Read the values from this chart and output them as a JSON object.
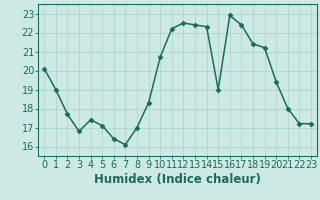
{
  "x": [
    0,
    1,
    2,
    3,
    4,
    5,
    6,
    7,
    8,
    9,
    10,
    11,
    12,
    13,
    14,
    15,
    16,
    17,
    18,
    19,
    20,
    21,
    22,
    23
  ],
  "y": [
    20.1,
    19.0,
    17.7,
    16.8,
    17.4,
    17.1,
    16.4,
    16.1,
    17.0,
    18.3,
    20.7,
    22.2,
    22.5,
    22.4,
    22.3,
    19.0,
    22.9,
    22.4,
    21.4,
    21.2,
    19.4,
    18.0,
    17.2,
    17.2
  ],
  "line_color": "#1a6b5a",
  "marker": "D",
  "marker_size": 2.5,
  "bg_color": "#cce9e5",
  "grid_color": "#b0d4cf",
  "xlabel": "Humidex (Indice chaleur)",
  "ylabel_ticks": [
    16,
    17,
    18,
    19,
    20,
    21,
    22,
    23
  ],
  "xlim": [
    -0.5,
    23.5
  ],
  "ylim": [
    15.5,
    23.5
  ],
  "xlabel_fontsize": 8.5,
  "tick_fontsize": 7,
  "line_width": 1.1,
  "tick_color": "#1a6b5a"
}
